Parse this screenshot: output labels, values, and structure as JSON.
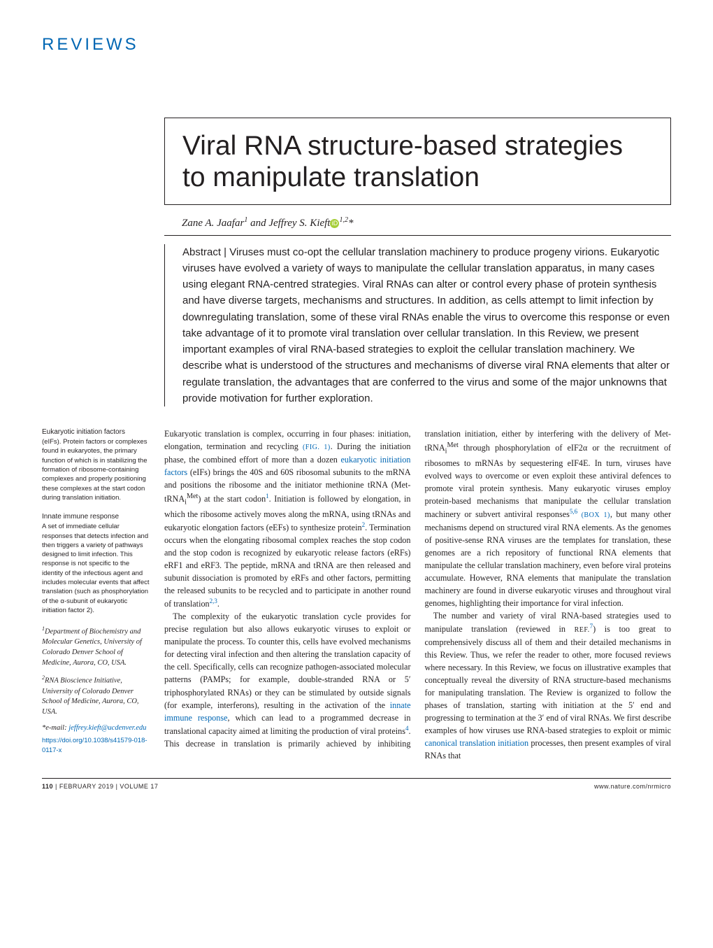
{
  "header": {
    "section_label": "REVIEWS"
  },
  "title": "Viral RNA structure-based strategies to manipulate translation",
  "authors_line": {
    "a1": "Zane A. Jaafar",
    "a1_aff": "1",
    "and": " and ",
    "a2": "Jeffrey S. Kieft",
    "a2_aff": "1,2",
    "star": "*"
  },
  "abstract": {
    "label": "Abstract | ",
    "text": "Viruses must co-opt the cellular translation machinery to produce progeny virions. Eukaryotic viruses have evolved a variety of ways to manipulate the cellular translation apparatus, in many cases using elegant RNA-centred strategies. Viral RNAs can alter or control every phase of protein synthesis and have diverse targets, mechanisms and structures. In addition, as cells attempt to limit infection by downregulating translation, some of these viral RNAs enable the virus to overcome this response or even take advantage of it to promote viral translation over cellular translation. In this Review, we present important examples of viral RNA-based strategies to exploit the cellular translation machinery. We describe what is understood of the structures and mechanisms of diverse viral RNA elements that alter or regulate translation, the advantages that are conferred to the virus and some of the major unknowns that provide motivation for further exploration."
  },
  "glossary": [
    {
      "term": "Eukaryotic initiation factors",
      "def": "(eIFs). Protein factors or complexes found in eukaryotes, the primary function of which is in stabilizing the formation of ribosome-containing complexes and properly positioning these complexes at the start codon during translation initiation."
    },
    {
      "term": "Innate immune response",
      "def": "A set of immediate cellular responses that detects infection and then triggers a variety of pathways designed to limit infection. This response is not specific to the identity of the infectious agent and includes molecular events that affect translation (such as phosphorylation of the α-subunit of eukaryotic initiation factor 2)."
    }
  ],
  "affiliations": {
    "a1": {
      "sup": "1",
      "text": "Department of Biochemistry and Molecular Genetics, University of Colorado Denver School of Medicine, Aurora, CO, USA."
    },
    "a2": {
      "sup": "2",
      "text": "RNA Bioscience Initiative, University of Colorado Denver School of Medicine, Aurora, CO, USA."
    },
    "corr_label": "*e-mail: ",
    "corr_email": "jeffrey.kieft@ucdenver.edu",
    "doi": "https://doi.org/10.1038/s41579-018-0117-x"
  },
  "body": {
    "p1a": "Eukaryotic translation is complex, occurring in four phases: initiation, elongation, termination and recycling ",
    "fig1": "(FIG. 1)",
    "p1b": ". During the initiation phase, the combined effort of more than a dozen ",
    "g1": "eukaryotic initiation factors",
    "p1c": " (eIFs) brings the 40S and 60S ribosomal subunits to the mRNA and positions the ribosome and the initiator methionine tRNA (Met-tRNA",
    "sub_i": "i",
    "sup_met": "Met",
    "p1d": ") at the start codon",
    "ref1": "1",
    "p1e": ". Initiation is followed by elongation, in which the ribosome actively moves along the mRNA, using tRNAs and eukaryotic elongation factors (eEFs) to synthesize protein",
    "ref2": "2",
    "p1f": ". Termination occurs when the elongating ribosomal complex reaches the stop codon and the stop codon is recognized by eukaryotic release factors (eRFs) eRF1 and eRF3. The peptide, mRNA and tRNA are then released and subunit dissociation is promoted by eRFs and other factors, permitting the released subunits to be recycled and to participate in another round of translation",
    "ref23": "2,3",
    "p1g": ".",
    "p2a": "The complexity of the eukaryotic translation cycle provides for precise regulation but also allows eukaryotic viruses to exploit or manipulate the process. To counter this, cells have evolved mechanisms for detecting viral infection and then altering the translation capacity of the cell. Specifically, cells can recognize pathogen-associated molecular patterns (PAMPs; for example, double-stranded RNA or 5′ triphosphorylated RNAs) or they can be stimulated by outside signals (for example, interferons), resulting in the activation of the ",
    "g2": "innate immune response",
    "p2b": ", which can lead to a programmed decrease in translational capacity aimed at limiting the production of viral proteins",
    "ref4": "4",
    "p2c": ". This decrease in translation is primarily achieved by inhibiting translation initiation, either by interfering with the delivery of Met-tRNA",
    "p2d": " through phosphorylation of eIF2α or the recruitment of ribosomes to mRNAs by sequestering eIF4E. In turn, viruses have evolved ways to overcome or even exploit these antiviral defences to promote viral protein synthesis. Many eukaryotic viruses employ protein-based mechanisms that manipulate the cellular translation machinery or subvert antiviral responses",
    "ref56": "5,6",
    "box1": " (BOX 1)",
    "p2e": ", but many other mechanisms depend on structured viral RNA elements. As the genomes of positive-sense RNA viruses are the templates for translation, these genomes are a rich repository of functional RNA elements that manipulate the cellular translation machinery, even before viral proteins accumulate. However, RNA elements that manipulate the translation machinery are found in diverse eukaryotic viruses and throughout viral genomes, highlighting their importance for viral infection.",
    "p3a": "The number and variety of viral RNA-based strategies used to manipulate translation (reviewed in ",
    "refsc": "REF.",
    "ref7": "7",
    "p3b": ") is too great to comprehensively discuss all of them and their detailed mechanisms in this Review. Thus, we refer the reader to other, more focused reviews where necessary. In this Review, we focus on illustrative examples that conceptually reveal the diversity of RNA structure-based mechanisms for manipulating translation. The Review is organized to follow the phases of translation, starting with initiation at the 5′ end and progressing to termination at the 3′ end of viral RNAs. We first describe examples of how viruses use RNA-based strategies to exploit or mimic ",
    "g3": "canonical translation initiation",
    "p3c": " processes, then present examples of viral RNAs that"
  },
  "footer": {
    "page": "110",
    "issue": " | FEBRUARY 2019 | VOLUME 17",
    "url": "www.nature.com/nrmicro"
  }
}
